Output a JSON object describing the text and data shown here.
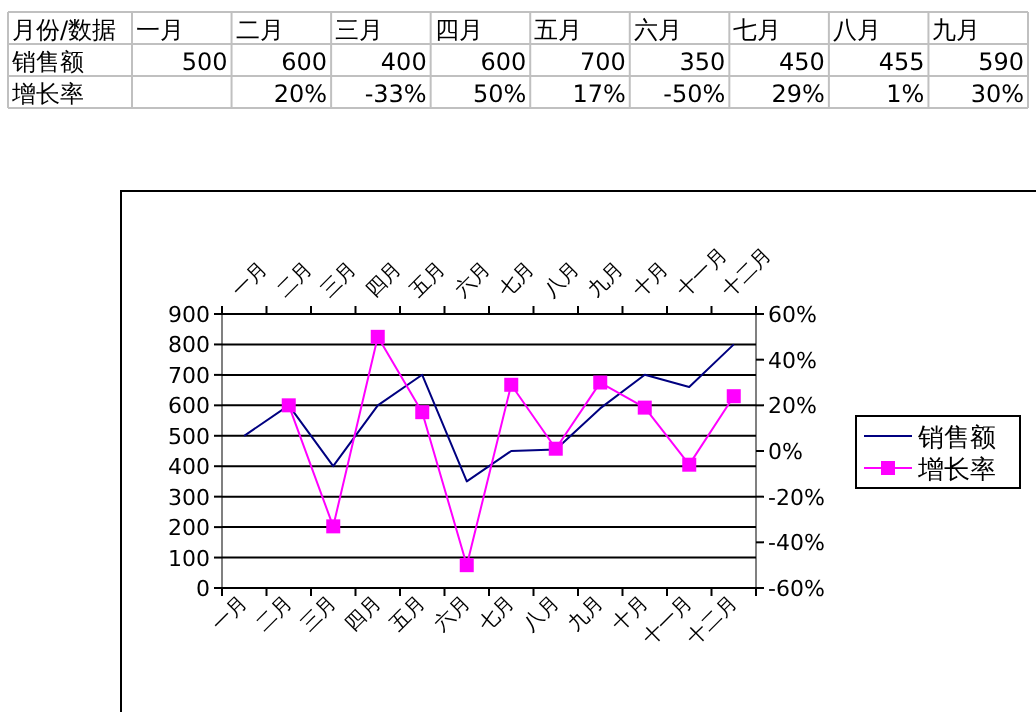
{
  "chart_data": [
    {
      "type": "other",
      "annotations": [
        "月份/数据"
      ],
      "categories": [
        "一月",
        "二月",
        "三月",
        "四月",
        "五月",
        "六月",
        "七月",
        "八月",
        "九月"
      ],
      "series": [
        {
          "name": "销售额",
          "values": [
            500,
            600,
            400,
            600,
            700,
            350,
            450,
            455,
            590
          ],
          "value_labels": [
            "500",
            "600",
            "400",
            "600",
            "700",
            "350",
            "450",
            "455",
            "590"
          ]
        },
        {
          "name": "增长率",
          "values": [
            null,
            20,
            -33,
            50,
            17,
            -50,
            29,
            1,
            30
          ],
          "value_labels": [
            null,
            "20%",
            "-33%",
            "50%",
            "17%",
            "-50%",
            "29%",
            "1%",
            "30%"
          ]
        }
      ]
    },
    {
      "type": "line",
      "categories": [
        "一月",
        "二月",
        "三月",
        "四月",
        "五月",
        "六月",
        "七月",
        "八月",
        "九月",
        "十月",
        "十一月",
        "十二月"
      ],
      "series": [
        {
          "name": "销售额",
          "color": "#000080",
          "values": [
            500,
            600,
            400,
            600,
            700,
            350,
            450,
            455,
            590,
            700,
            660,
            800
          ]
        },
        {
          "name": "增长率",
          "color": "#ff00ff",
          "axis": "y2",
          "marker": "square",
          "values": [
            null,
            20,
            -33,
            50,
            17,
            -50,
            29,
            1,
            30,
            19,
            -6,
            24
          ]
        }
      ],
      "ylim": [
        0,
        900
      ],
      "yticks": [
        0,
        100,
        200,
        300,
        400,
        500,
        600,
        700,
        800,
        900
      ],
      "y2lim": [
        -60,
        60
      ],
      "y2ticks": [
        {
          "value": -60,
          "label": "-60%"
        },
        {
          "value": -40,
          "label": "-40%"
        },
        {
          "value": -20,
          "label": "-20%"
        },
        {
          "value": 0,
          "label": "0%"
        },
        {
          "value": 20,
          "label": "20%"
        },
        {
          "value": 40,
          "label": "40%"
        },
        {
          "value": 60,
          "label": "60%"
        }
      ],
      "grid": "y",
      "legend": "right"
    }
  ]
}
